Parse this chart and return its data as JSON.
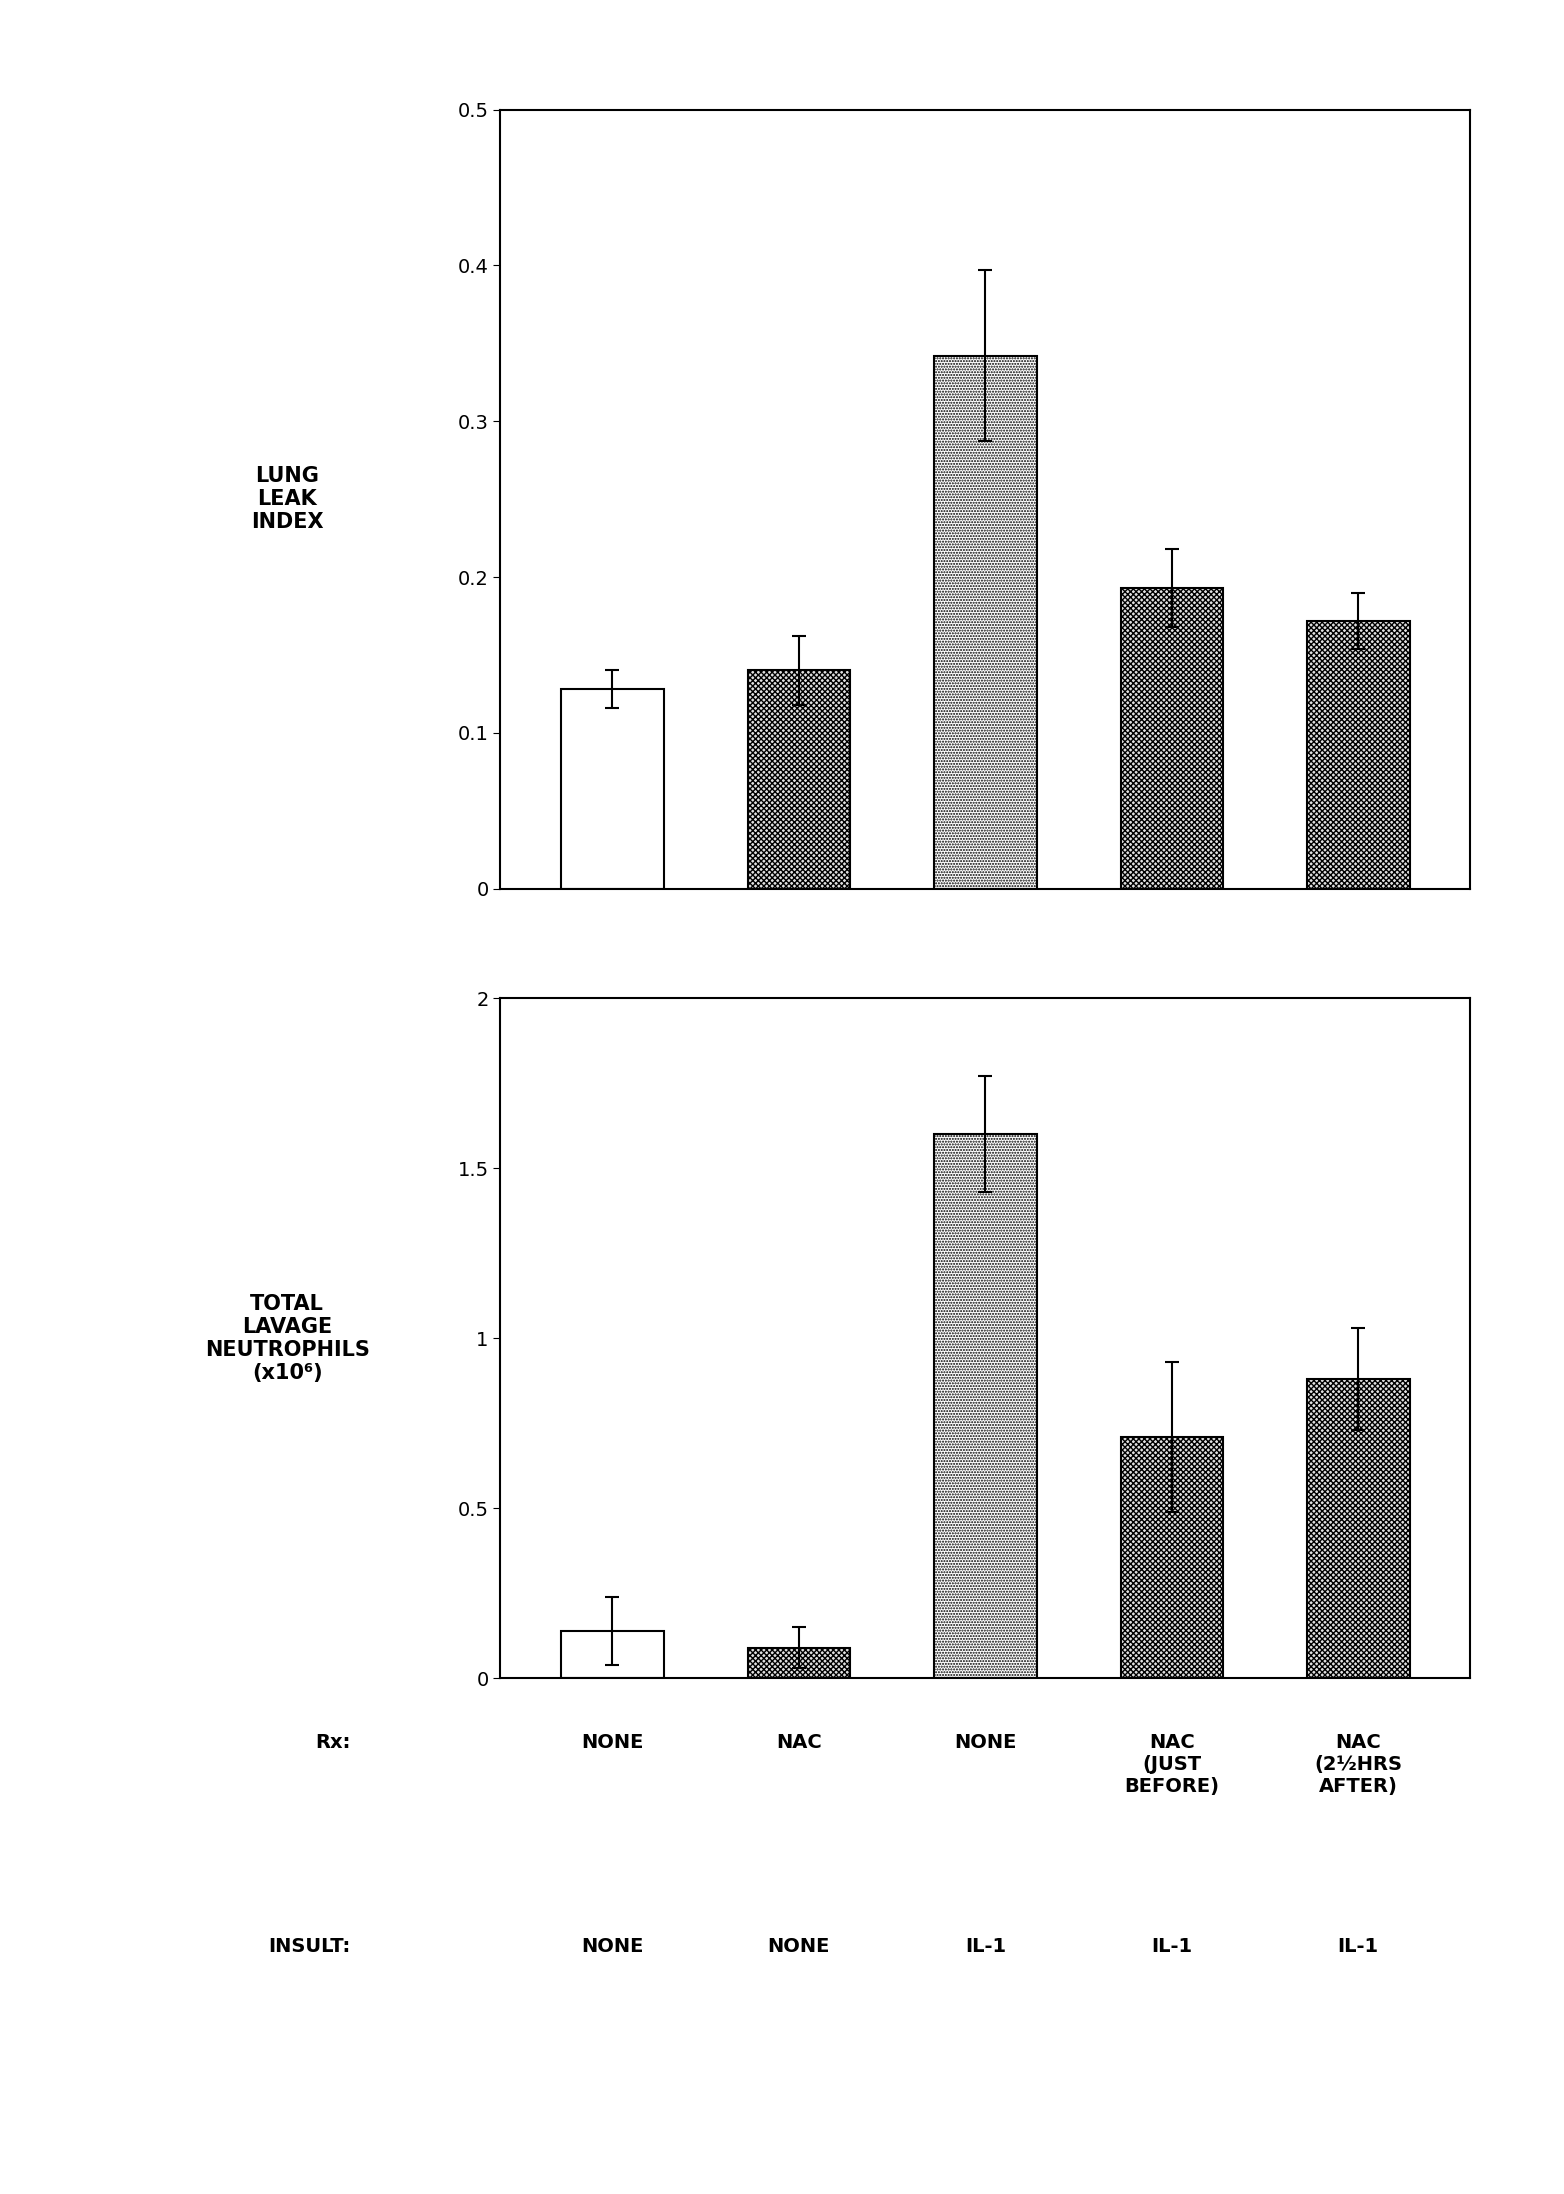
{
  "chart1": {
    "ylabel_lines": [
      "LUNG",
      "LEAK",
      "INDEX"
    ],
    "ylim": [
      0,
      0.5
    ],
    "yticks": [
      0,
      0.1,
      0.2,
      0.3,
      0.4,
      0.5
    ],
    "ytick_labels": [
      "0",
      "0.1",
      "0.2",
      "0.3",
      "0.4",
      "0.5"
    ],
    "values": [
      0.128,
      0.14,
      0.342,
      0.193,
      0.172
    ],
    "errors": [
      0.012,
      0.022,
      0.055,
      0.025,
      0.018
    ],
    "bar_patterns": [
      "white",
      "dark_dots",
      "light_dots",
      "dark_dots",
      "dark_dots"
    ],
    "x_positions": [
      1,
      2,
      3,
      4,
      5
    ]
  },
  "chart2": {
    "ylabel_lines": [
      "TOTAL",
      "LAVAGE",
      "NEUTROPHILS",
      "(x10⁶)"
    ],
    "ylim": [
      0,
      2.0
    ],
    "yticks": [
      0,
      0.5,
      1.0,
      1.5,
      2.0
    ],
    "ytick_labels": [
      "0",
      "0.5",
      "1",
      "1.5",
      "2"
    ],
    "values": [
      0.14,
      0.09,
      1.6,
      0.71,
      0.88
    ],
    "errors": [
      0.1,
      0.06,
      0.17,
      0.22,
      0.15
    ],
    "bar_patterns": [
      "white",
      "dark_dots",
      "light_dots",
      "dark_dots",
      "dark_dots"
    ],
    "x_positions": [
      1,
      2,
      3,
      4,
      5
    ]
  },
  "rx_labels": [
    "NONE",
    "NAC",
    "NONE",
    "NAC\n(JUST\nBEFORE)",
    "NAC\n(2½HRS\nAFTER)"
  ],
  "insult_labels": [
    "NONE",
    "NONE",
    "IL-1",
    "IL-1",
    "IL-1"
  ],
  "rx_prefix": "Rx:",
  "insult_prefix": "INSULT:",
  "bar_width": 0.55,
  "figsize": [
    15.64,
    21.94
  ],
  "dpi": 100,
  "background_color": "#ffffff",
  "text_color": "#000000",
  "bar_edge_color": "#000000",
  "ylabel_fontsize": 15,
  "tick_fontsize": 14,
  "label_fontsize": 14,
  "axis_label_fontsize": 14
}
